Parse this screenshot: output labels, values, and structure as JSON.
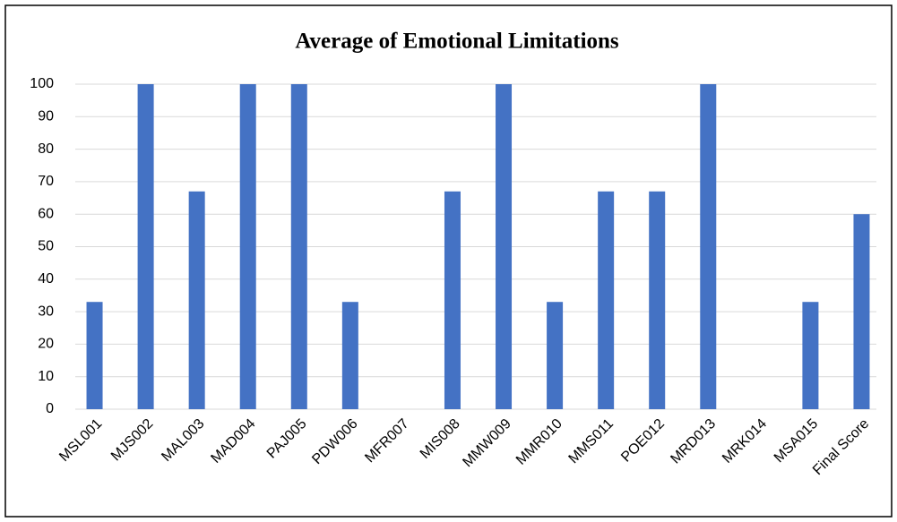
{
  "chart_data": {
    "type": "bar",
    "title": "Average of Emotional Limitations",
    "categories": [
      "MSL001",
      "MJS002",
      "MAL003",
      "MAD004",
      "PAJ005",
      "PDW006",
      "MFR007",
      "MIS008",
      "MMW009",
      "MMR010",
      "MMS011",
      "POE012",
      "MRD013",
      "MRK014",
      "MSA015",
      "Final Score"
    ],
    "values": [
      33,
      100,
      67,
      100,
      100,
      33,
      0,
      67,
      100,
      33,
      67,
      67,
      100,
      0,
      33,
      60
    ],
    "color": "#4472c4",
    "ylim": [
      0,
      100
    ],
    "yticks": [
      0,
      10,
      20,
      30,
      40,
      50,
      60,
      70,
      80,
      90,
      100
    ],
    "grid": true
  }
}
